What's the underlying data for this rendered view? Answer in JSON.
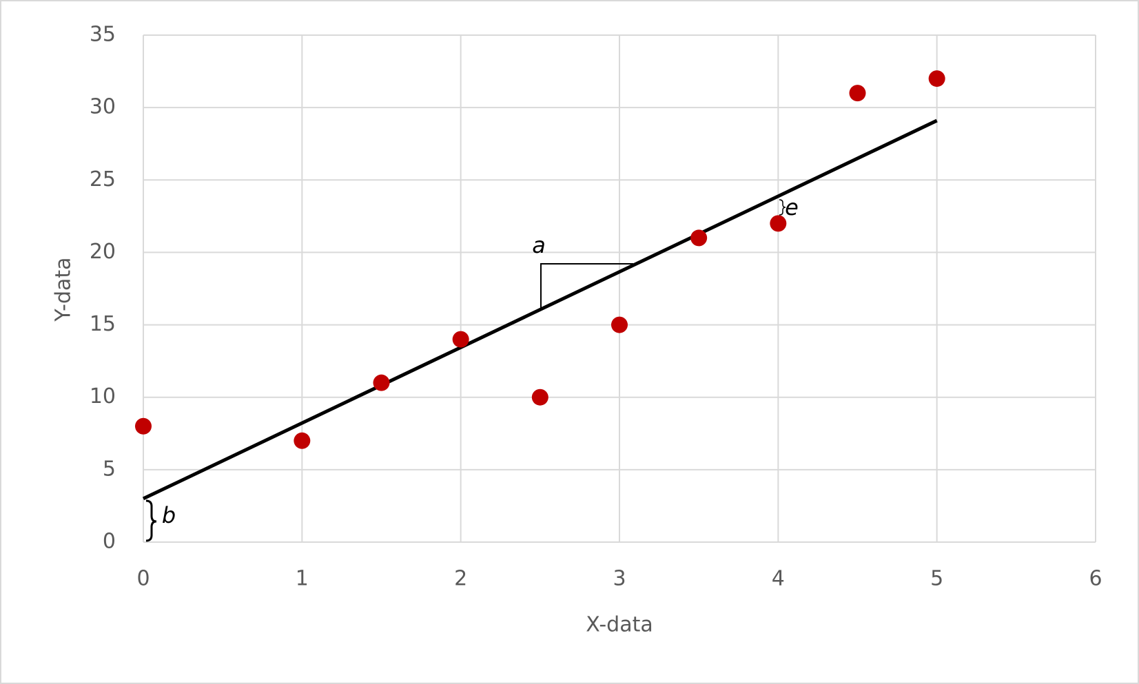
{
  "chart_data": {
    "type": "scatter",
    "x_label": "X-data",
    "y_label": "Y-data",
    "series": [
      {
        "name": "Y-data",
        "color": "#c00000",
        "x": [
          0,
          1,
          1.5,
          2,
          2.5,
          3,
          3.5,
          4,
          4.5,
          5
        ],
        "values": [
          8,
          7,
          11,
          14,
          10,
          15,
          21,
          22,
          31,
          32
        ]
      }
    ],
    "trendline": {
      "color": "#000000",
      "x": [
        0,
        5
      ],
      "values": [
        3,
        29.1
      ]
    },
    "annotations": [
      "a",
      "b",
      "e"
    ],
    "xlim": [
      0,
      6
    ],
    "xticks": [
      0,
      1,
      2,
      3,
      4,
      5,
      6
    ],
    "ylim": [
      0,
      35
    ],
    "yticks": [
      0,
      5,
      10,
      15,
      20,
      25,
      30,
      35
    ],
    "grid": true
  }
}
